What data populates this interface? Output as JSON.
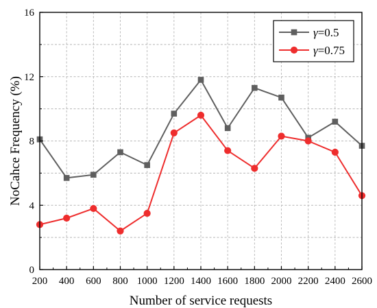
{
  "chart_data": {
    "type": "line",
    "xlabel": "Number of service requests",
    "ylabel": "NoCahce  Frequency  (%)",
    "x": [
      200,
      400,
      600,
      800,
      1000,
      1200,
      1400,
      1600,
      1800,
      2000,
      2200,
      2400,
      2600
    ],
    "xlim": [
      200,
      2600
    ],
    "ylim": [
      0,
      16
    ],
    "xticks": [
      "200",
      "400",
      "600",
      "800",
      "1000",
      "1200",
      "1400",
      "1600",
      "1800",
      "2000",
      "2200",
      "2400",
      "2600"
    ],
    "yticks": [
      "0",
      "4",
      "8",
      "12",
      "16"
    ],
    "grid": true,
    "legend_position": "top-right",
    "series": [
      {
        "name": "γ=0.5",
        "symbol": "γ",
        "suffix": "=0.5",
        "color": "#5f5f5f",
        "marker": "square",
        "values": [
          8.1,
          5.7,
          5.9,
          7.3,
          6.5,
          9.7,
          11.8,
          8.8,
          11.3,
          10.7,
          8.2,
          9.2,
          7.7
        ]
      },
      {
        "name": "γ=0.75",
        "symbol": "γ",
        "suffix": "=0.75",
        "color": "#ee2d2d",
        "marker": "circle",
        "values": [
          2.8,
          3.2,
          3.8,
          2.4,
          3.5,
          8.5,
          9.6,
          7.4,
          6.3,
          8.3,
          8.0,
          7.3,
          4.6
        ]
      }
    ]
  }
}
